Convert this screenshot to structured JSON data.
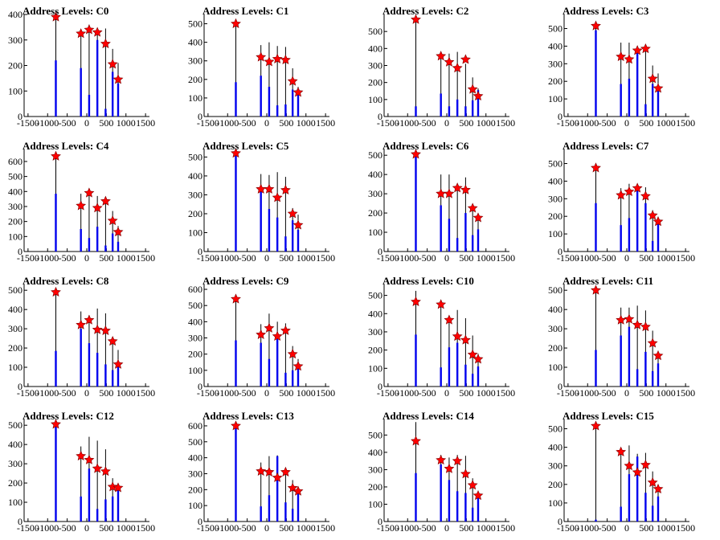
{
  "title_prefix": "Address Levels:",
  "colors": {
    "spike": "#000000",
    "bar": "#0000ee",
    "marker": "#ff0000"
  },
  "chart_data": [
    {
      "type": "bar",
      "title": "Address Levels: C0",
      "ylim": [
        0,
        400
      ],
      "yticks": [
        0,
        100,
        200,
        300,
        400
      ],
      "xlim": [
        -1600,
        1600
      ],
      "xticks": [
        -1500,
        -1000,
        -500,
        0,
        500,
        1000,
        1500
      ],
      "peaks": [
        {
          "x": -790,
          "y": 390,
          "h": 400,
          "b": 220
        },
        {
          "x": -150,
          "y": 325,
          "h": 330,
          "b": 190
        },
        {
          "x": 60,
          "y": 340,
          "h": 360,
          "b": 85
        },
        {
          "x": 270,
          "y": 330,
          "h": 335,
          "b": 300
        },
        {
          "x": 480,
          "y": 285,
          "h": 345,
          "b": 30
        },
        {
          "x": 660,
          "y": 205,
          "h": 265,
          "b": 175
        },
        {
          "x": 800,
          "y": 145,
          "h": 210,
          "b": 130
        }
      ]
    },
    {
      "type": "bar",
      "title": "Address Levels: C1",
      "ylim": [
        0,
        550
      ],
      "yticks": [
        0,
        100,
        200,
        300,
        400,
        500
      ],
      "xlim": [
        -1600,
        1600
      ],
      "xticks": [
        -1500,
        -1000,
        -500,
        0,
        500,
        1000,
        1500
      ],
      "peaks": [
        {
          "x": -790,
          "y": 500,
          "h": 510,
          "b": 185
        },
        {
          "x": -150,
          "y": 320,
          "h": 385,
          "b": 220
        },
        {
          "x": 60,
          "y": 295,
          "h": 400,
          "b": 160
        },
        {
          "x": 270,
          "y": 310,
          "h": 380,
          "b": 60
        },
        {
          "x": 480,
          "y": 305,
          "h": 375,
          "b": 65
        },
        {
          "x": 660,
          "y": 190,
          "h": 260,
          "b": 145
        },
        {
          "x": 800,
          "y": 130,
          "h": 160,
          "b": 150
        }
      ]
    },
    {
      "type": "bar",
      "title": "Address Levels: C2",
      "ylim": [
        0,
        600
      ],
      "yticks": [
        0,
        100,
        200,
        300,
        400,
        500
      ],
      "xlim": [
        -1600,
        1600
      ],
      "xticks": [
        -1500,
        -1000,
        -500,
        0,
        500,
        1000,
        1500
      ],
      "peaks": [
        {
          "x": -790,
          "y": 570,
          "h": 585,
          "b": 60
        },
        {
          "x": -150,
          "y": 355,
          "h": 360,
          "b": 135
        },
        {
          "x": 60,
          "y": 320,
          "h": 370,
          "b": 60
        },
        {
          "x": 270,
          "y": 285,
          "h": 380,
          "b": 100
        },
        {
          "x": 480,
          "y": 335,
          "h": 310,
          "b": 60
        },
        {
          "x": 660,
          "y": 160,
          "h": 230,
          "b": 95
        },
        {
          "x": 800,
          "y": 120,
          "h": 165,
          "b": 155
        }
      ]
    },
    {
      "type": "bar",
      "title": "Address Levels: C3",
      "ylim": [
        0,
        580
      ],
      "yticks": [
        0,
        100,
        200,
        300,
        400,
        500
      ],
      "xlim": [
        -1600,
        1600
      ],
      "xticks": [
        -1500,
        -1000,
        -500,
        0,
        500,
        1000,
        1500
      ],
      "peaks": [
        {
          "x": -790,
          "y": 515,
          "h": 535,
          "b": 490
        },
        {
          "x": -150,
          "y": 340,
          "h": 420,
          "b": 185
        },
        {
          "x": 60,
          "y": 325,
          "h": 420,
          "b": 215
        },
        {
          "x": 270,
          "y": 375,
          "h": 400,
          "b": 370
        },
        {
          "x": 480,
          "y": 385,
          "h": 395,
          "b": 70
        },
        {
          "x": 660,
          "y": 215,
          "h": 290,
          "b": 185
        },
        {
          "x": 800,
          "y": 160,
          "h": 245,
          "b": 145
        }
      ]
    },
    {
      "type": "bar",
      "title": "Address Levels: C4",
      "ylim": [
        0,
        680
      ],
      "yticks": [
        0,
        100,
        200,
        300,
        400,
        500,
        600
      ],
      "xlim": [
        -1600,
        1600
      ],
      "xticks": [
        -1500,
        -1000,
        -500,
        0,
        500,
        1000,
        1500
      ],
      "peaks": [
        {
          "x": -790,
          "y": 635,
          "h": 650,
          "b": 385
        },
        {
          "x": -150,
          "y": 305,
          "h": 385,
          "b": 150
        },
        {
          "x": 60,
          "y": 390,
          "h": 405,
          "b": 90
        },
        {
          "x": 270,
          "y": 290,
          "h": 370,
          "b": 165
        },
        {
          "x": 480,
          "y": 335,
          "h": 365,
          "b": 40
        },
        {
          "x": 660,
          "y": 205,
          "h": 270,
          "b": 120
        },
        {
          "x": 800,
          "y": 130,
          "h": 170,
          "b": 65
        }
      ]
    },
    {
      "type": "bar",
      "title": "Address Levels: C5",
      "ylim": [
        0,
        540
      ],
      "yticks": [
        0,
        100,
        200,
        300,
        400,
        500
      ],
      "xlim": [
        -1600,
        1600
      ],
      "xticks": [
        -1500,
        -1000,
        -500,
        0,
        500,
        1000,
        1500
      ],
      "peaks": [
        {
          "x": -790,
          "y": 520,
          "h": 525,
          "b": 515
        },
        {
          "x": -150,
          "y": 330,
          "h": 410,
          "b": 330
        },
        {
          "x": 60,
          "y": 330,
          "h": 405,
          "b": 225
        },
        {
          "x": 270,
          "y": 285,
          "h": 420,
          "b": 180
        },
        {
          "x": 480,
          "y": 325,
          "h": 395,
          "b": 80
        },
        {
          "x": 660,
          "y": 200,
          "h": 230,
          "b": 165
        },
        {
          "x": 800,
          "y": 140,
          "h": 195,
          "b": 115
        }
      ]
    },
    {
      "type": "bar",
      "title": "Address Levels: C6",
      "ylim": [
        0,
        530
      ],
      "yticks": [
        0,
        100,
        200,
        300,
        400,
        500
      ],
      "xlim": [
        -1600,
        1600
      ],
      "xticks": [
        -1500,
        -1000,
        -500,
        0,
        500,
        1000,
        1500
      ],
      "peaks": [
        {
          "x": -790,
          "y": 505,
          "h": 515,
          "b": 500
        },
        {
          "x": -150,
          "y": 300,
          "h": 400,
          "b": 240
        },
        {
          "x": 60,
          "y": 300,
          "h": 400,
          "b": 170
        },
        {
          "x": 270,
          "y": 330,
          "h": 345,
          "b": 70
        },
        {
          "x": 480,
          "y": 320,
          "h": 385,
          "b": 200
        },
        {
          "x": 660,
          "y": 225,
          "h": 245,
          "b": 85
        },
        {
          "x": 800,
          "y": 175,
          "h": 180,
          "b": 115
        }
      ]
    },
    {
      "type": "bar",
      "title": "Address Levels: C7",
      "ylim": [
        0,
        580
      ],
      "yticks": [
        0,
        100,
        200,
        300,
        400,
        500
      ],
      "xlim": [
        -1600,
        1600
      ],
      "xticks": [
        -1500,
        -1000,
        -500,
        0,
        500,
        1000,
        1500
      ],
      "peaks": [
        {
          "x": -790,
          "y": 475,
          "h": 485,
          "b": 275
        },
        {
          "x": -150,
          "y": 320,
          "h": 360,
          "b": 150
        },
        {
          "x": 60,
          "y": 340,
          "h": 385,
          "b": 190
        },
        {
          "x": 270,
          "y": 360,
          "h": 360,
          "b": 365
        },
        {
          "x": 480,
          "y": 315,
          "h": 365,
          "b": 275
        },
        {
          "x": 660,
          "y": 205,
          "h": 235,
          "b": 60
        },
        {
          "x": 800,
          "y": 170,
          "h": 190,
          "b": 165
        }
      ]
    },
    {
      "type": "bar",
      "title": "Address Levels: C8",
      "ylim": [
        0,
        530
      ],
      "yticks": [
        0,
        100,
        200,
        300,
        400,
        500
      ],
      "xlim": [
        -1600,
        1600
      ],
      "xticks": [
        -1500,
        -1000,
        -500,
        0,
        500,
        1000,
        1500
      ],
      "peaks": [
        {
          "x": -790,
          "y": 490,
          "h": 505,
          "b": 185
        },
        {
          "x": -150,
          "y": 320,
          "h": 390,
          "b": 300
        },
        {
          "x": 60,
          "y": 345,
          "h": 370,
          "b": 225
        },
        {
          "x": 270,
          "y": 295,
          "h": 405,
          "b": 175
        },
        {
          "x": 480,
          "y": 290,
          "h": 380,
          "b": 115
        },
        {
          "x": 660,
          "y": 235,
          "h": 255,
          "b": 85
        },
        {
          "x": 800,
          "y": 115,
          "h": 190,
          "b": 120
        }
      ]
    },
    {
      "type": "bar",
      "title": "Address Levels: C9",
      "ylim": [
        0,
        630
      ],
      "yticks": [
        0,
        100,
        200,
        300,
        400,
        500,
        600
      ],
      "xlim": [
        -1600,
        1600
      ],
      "xticks": [
        -1500,
        -1000,
        -500,
        0,
        500,
        1000,
        1500
      ],
      "peaks": [
        {
          "x": -790,
          "y": 540,
          "h": 560,
          "b": 285
        },
        {
          "x": -150,
          "y": 320,
          "h": 385,
          "b": 270
        },
        {
          "x": 60,
          "y": 360,
          "h": 450,
          "b": 170
        },
        {
          "x": 270,
          "y": 310,
          "h": 400,
          "b": 305
        },
        {
          "x": 480,
          "y": 345,
          "h": 390,
          "b": 85
        },
        {
          "x": 660,
          "y": 200,
          "h": 250,
          "b": 100
        },
        {
          "x": 800,
          "y": 125,
          "h": 170,
          "b": 110
        }
      ]
    },
    {
      "type": "bar",
      "title": "Address Levels: C10",
      "ylim": [
        0,
        560
      ],
      "yticks": [
        0,
        100,
        200,
        300,
        400,
        500
      ],
      "xlim": [
        -1600,
        1600
      ],
      "xticks": [
        -1500,
        -1000,
        -500,
        0,
        500,
        1000,
        1500
      ],
      "peaks": [
        {
          "x": -790,
          "y": 465,
          "h": 525,
          "b": 285
        },
        {
          "x": -150,
          "y": 450,
          "h": 455,
          "b": 105
        },
        {
          "x": 60,
          "y": 365,
          "h": 385,
          "b": 215
        },
        {
          "x": 270,
          "y": 275,
          "h": 420,
          "b": 240
        },
        {
          "x": 480,
          "y": 255,
          "h": 375,
          "b": 120
        },
        {
          "x": 660,
          "y": 175,
          "h": 280,
          "b": 70
        },
        {
          "x": 800,
          "y": 150,
          "h": 180,
          "b": 110
        }
      ]
    },
    {
      "type": "bar",
      "title": "Address Levels: C11",
      "ylim": [
        0,
        530
      ],
      "yticks": [
        0,
        100,
        200,
        300,
        400,
        500
      ],
      "xlim": [
        -1600,
        1600
      ],
      "xticks": [
        -1500,
        -1000,
        -500,
        0,
        500,
        1000,
        1500
      ],
      "peaks": [
        {
          "x": -790,
          "y": 500,
          "h": 505,
          "b": 190
        },
        {
          "x": -150,
          "y": 345,
          "h": 410,
          "b": 265
        },
        {
          "x": 60,
          "y": 350,
          "h": 410,
          "b": 310
        },
        {
          "x": 270,
          "y": 320,
          "h": 420,
          "b": 90
        },
        {
          "x": 480,
          "y": 310,
          "h": 395,
          "b": 180
        },
        {
          "x": 660,
          "y": 225,
          "h": 290,
          "b": 80
        },
        {
          "x": 800,
          "y": 160,
          "h": 165,
          "b": 120
        }
      ]
    },
    {
      "type": "bar",
      "title": "Address Levels: C12",
      "ylim": [
        0,
        530
      ],
      "yticks": [
        0,
        100,
        200,
        300,
        400,
        500
      ],
      "xlim": [
        -1600,
        1600
      ],
      "xticks": [
        -1500,
        -1000,
        -500,
        0,
        500,
        1000,
        1500
      ],
      "peaks": [
        {
          "x": -790,
          "y": 505,
          "h": 515,
          "b": 490
        },
        {
          "x": -150,
          "y": 340,
          "h": 390,
          "b": 130
        },
        {
          "x": 60,
          "y": 320,
          "h": 440,
          "b": 275
        },
        {
          "x": 270,
          "y": 275,
          "h": 420,
          "b": 65
        },
        {
          "x": 480,
          "y": 260,
          "h": 375,
          "b": 115
        },
        {
          "x": 660,
          "y": 180,
          "h": 225,
          "b": 130
        },
        {
          "x": 800,
          "y": 175,
          "h": 180,
          "b": 180
        }
      ]
    },
    {
      "type": "bar",
      "title": "Address Levels: C13",
      "ylim": [
        0,
        640
      ],
      "yticks": [
        0,
        100,
        200,
        300,
        400,
        500,
        600
      ],
      "xlim": [
        -1600,
        1600
      ],
      "xticks": [
        -1500,
        -1000,
        -500,
        0,
        500,
        1000,
        1500
      ],
      "peaks": [
        {
          "x": -790,
          "y": 600,
          "h": 620,
          "b": 590
        },
        {
          "x": -150,
          "y": 315,
          "h": 370,
          "b": 95
        },
        {
          "x": 60,
          "y": 310,
          "h": 410,
          "b": 165
        },
        {
          "x": 270,
          "y": 275,
          "h": 415,
          "b": 410
        },
        {
          "x": 480,
          "y": 310,
          "h": 320,
          "b": 120
        },
        {
          "x": 660,
          "y": 210,
          "h": 260,
          "b": 80
        },
        {
          "x": 800,
          "y": 190,
          "h": 210,
          "b": 185
        }
      ]
    },
    {
      "type": "bar",
      "title": "Address Levels: C14",
      "ylim": [
        0,
        590
      ],
      "yticks": [
        0,
        100,
        200,
        300,
        400,
        500
      ],
      "xlim": [
        -1600,
        1600
      ],
      "xticks": [
        -1500,
        -1000,
        -500,
        0,
        500,
        1000,
        1500
      ],
      "peaks": [
        {
          "x": -790,
          "y": 465,
          "h": 575,
          "b": 280
        },
        {
          "x": -150,
          "y": 355,
          "h": 385,
          "b": 330
        },
        {
          "x": 60,
          "y": 305,
          "h": 370,
          "b": 240
        },
        {
          "x": 270,
          "y": 350,
          "h": 385,
          "b": 175
        },
        {
          "x": 480,
          "y": 275,
          "h": 380,
          "b": 165
        },
        {
          "x": 660,
          "y": 210,
          "h": 250,
          "b": 80
        },
        {
          "x": 800,
          "y": 150,
          "h": 170,
          "b": 145
        }
      ]
    },
    {
      "type": "bar",
      "title": "Address Levels: C15",
      "ylim": [
        0,
        550
      ],
      "yticks": [
        0,
        100,
        200,
        300,
        400,
        500
      ],
      "xlim": [
        -1600,
        1600
      ],
      "xticks": [
        -1500,
        -1000,
        -500,
        0,
        500,
        1000,
        1500
      ],
      "peaks": [
        {
          "x": -790,
          "y": 515,
          "h": 515,
          "b": 10
        },
        {
          "x": -150,
          "y": 375,
          "h": 380,
          "b": 80
        },
        {
          "x": 60,
          "y": 300,
          "h": 410,
          "b": 255
        },
        {
          "x": 270,
          "y": 265,
          "h": 365,
          "b": 350
        },
        {
          "x": 480,
          "y": 305,
          "h": 370,
          "b": 155
        },
        {
          "x": 660,
          "y": 210,
          "h": 270,
          "b": 85
        },
        {
          "x": 800,
          "y": 175,
          "h": 185,
          "b": 135
        }
      ]
    }
  ]
}
